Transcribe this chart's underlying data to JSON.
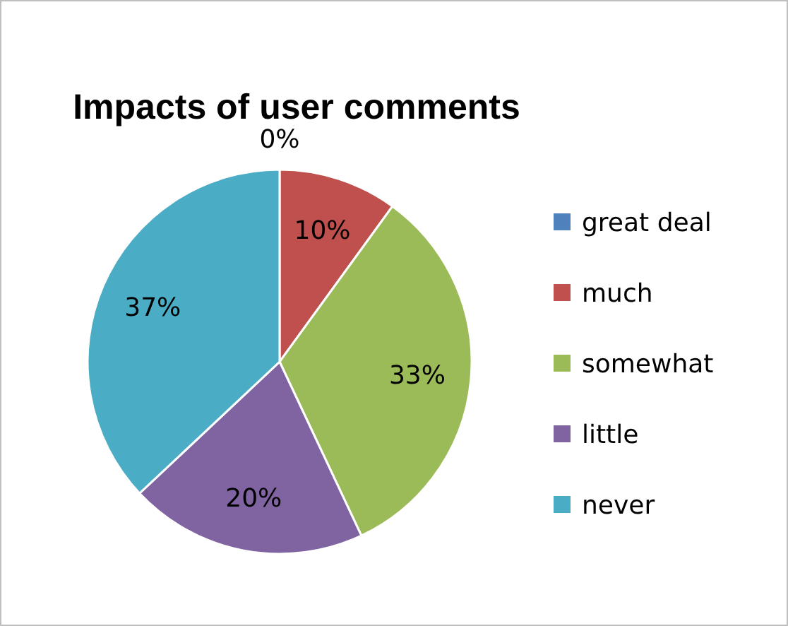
{
  "chart_data": {
    "type": "pie",
    "title": "Impacts of user comments",
    "categories": [
      "great deal",
      "much",
      "somewhat",
      "little",
      "never"
    ],
    "values": [
      0,
      10,
      33,
      20,
      37
    ],
    "colors": [
      "#4f81bd",
      "#c0504d",
      "#9bbb59",
      "#8064a2",
      "#4bacc6"
    ],
    "value_labels": [
      "0%",
      "10%",
      "33%",
      "20%",
      "37%"
    ],
    "legend": "right"
  }
}
